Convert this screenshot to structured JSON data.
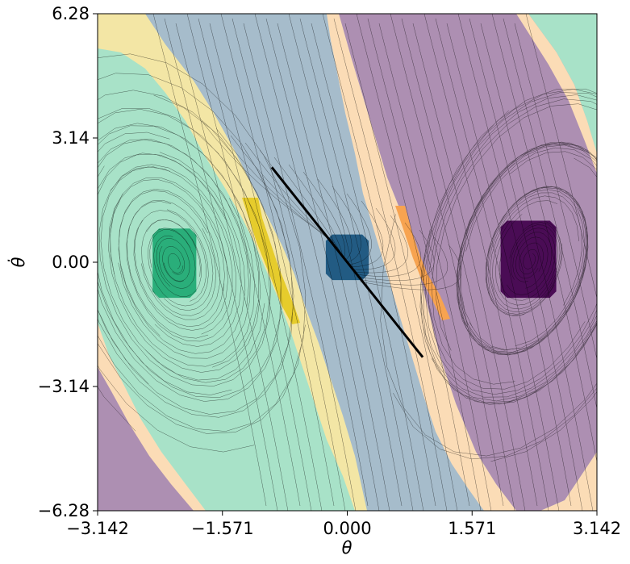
{
  "chart_data": {
    "type": "heatmap",
    "title": "",
    "xlabel": "θ",
    "ylabel": "θ̇",
    "xlim": [
      -3.142,
      3.142
    ],
    "ylim": [
      -6.28,
      6.28
    ],
    "x_ticks": [
      {
        "value": -3.142,
        "label": "−3.142"
      },
      {
        "value": -1.571,
        "label": "−1.571"
      },
      {
        "value": 0.0,
        "label": "0.000"
      },
      {
        "value": 1.571,
        "label": "1.571"
      },
      {
        "value": 3.142,
        "label": "3.142"
      }
    ],
    "y_ticks": [
      {
        "value": 6.28,
        "label": "6.28"
      },
      {
        "value": 3.14,
        "label": "3.14"
      },
      {
        "value": 0.0,
        "label": "0.00"
      },
      {
        "value": -3.14,
        "label": "−3.14"
      },
      {
        "value": -6.28,
        "label": "−6.28"
      }
    ],
    "grid": false,
    "colors": {
      "background_blue": "#a6bccb",
      "mint": "#a8e2c8",
      "purple": "#ad8fb2",
      "pale_yellow": "#f3e6a5",
      "peach": "#fbdcb6",
      "green_target": "#2aae7a",
      "blue_target": "#225b83",
      "purple_target": "#4a0c55",
      "yellow_band": "#e6cc2c",
      "orange_band": "#f7a350",
      "trajectory": "#000000"
    },
    "regions": [
      {
        "name": "green-attractor",
        "shape": "box",
        "x": [
          -2.45,
          -1.9
        ],
        "y": [
          -0.9,
          0.85
        ],
        "color": "#2aae7a"
      },
      {
        "name": "blue-attractor",
        "shape": "box",
        "x": [
          -0.27,
          0.27
        ],
        "y": [
          -0.45,
          0.7
        ],
        "color": "#225b83"
      },
      {
        "name": "purple-attractor",
        "shape": "box",
        "x": [
          1.93,
          2.63
        ],
        "y": [
          -0.9,
          1.05
        ],
        "color": "#4a0c55"
      }
    ],
    "separatrix_line": {
      "x": [
        -0.95,
        0.95
      ],
      "y": [
        2.4,
        -2.4
      ]
    }
  }
}
